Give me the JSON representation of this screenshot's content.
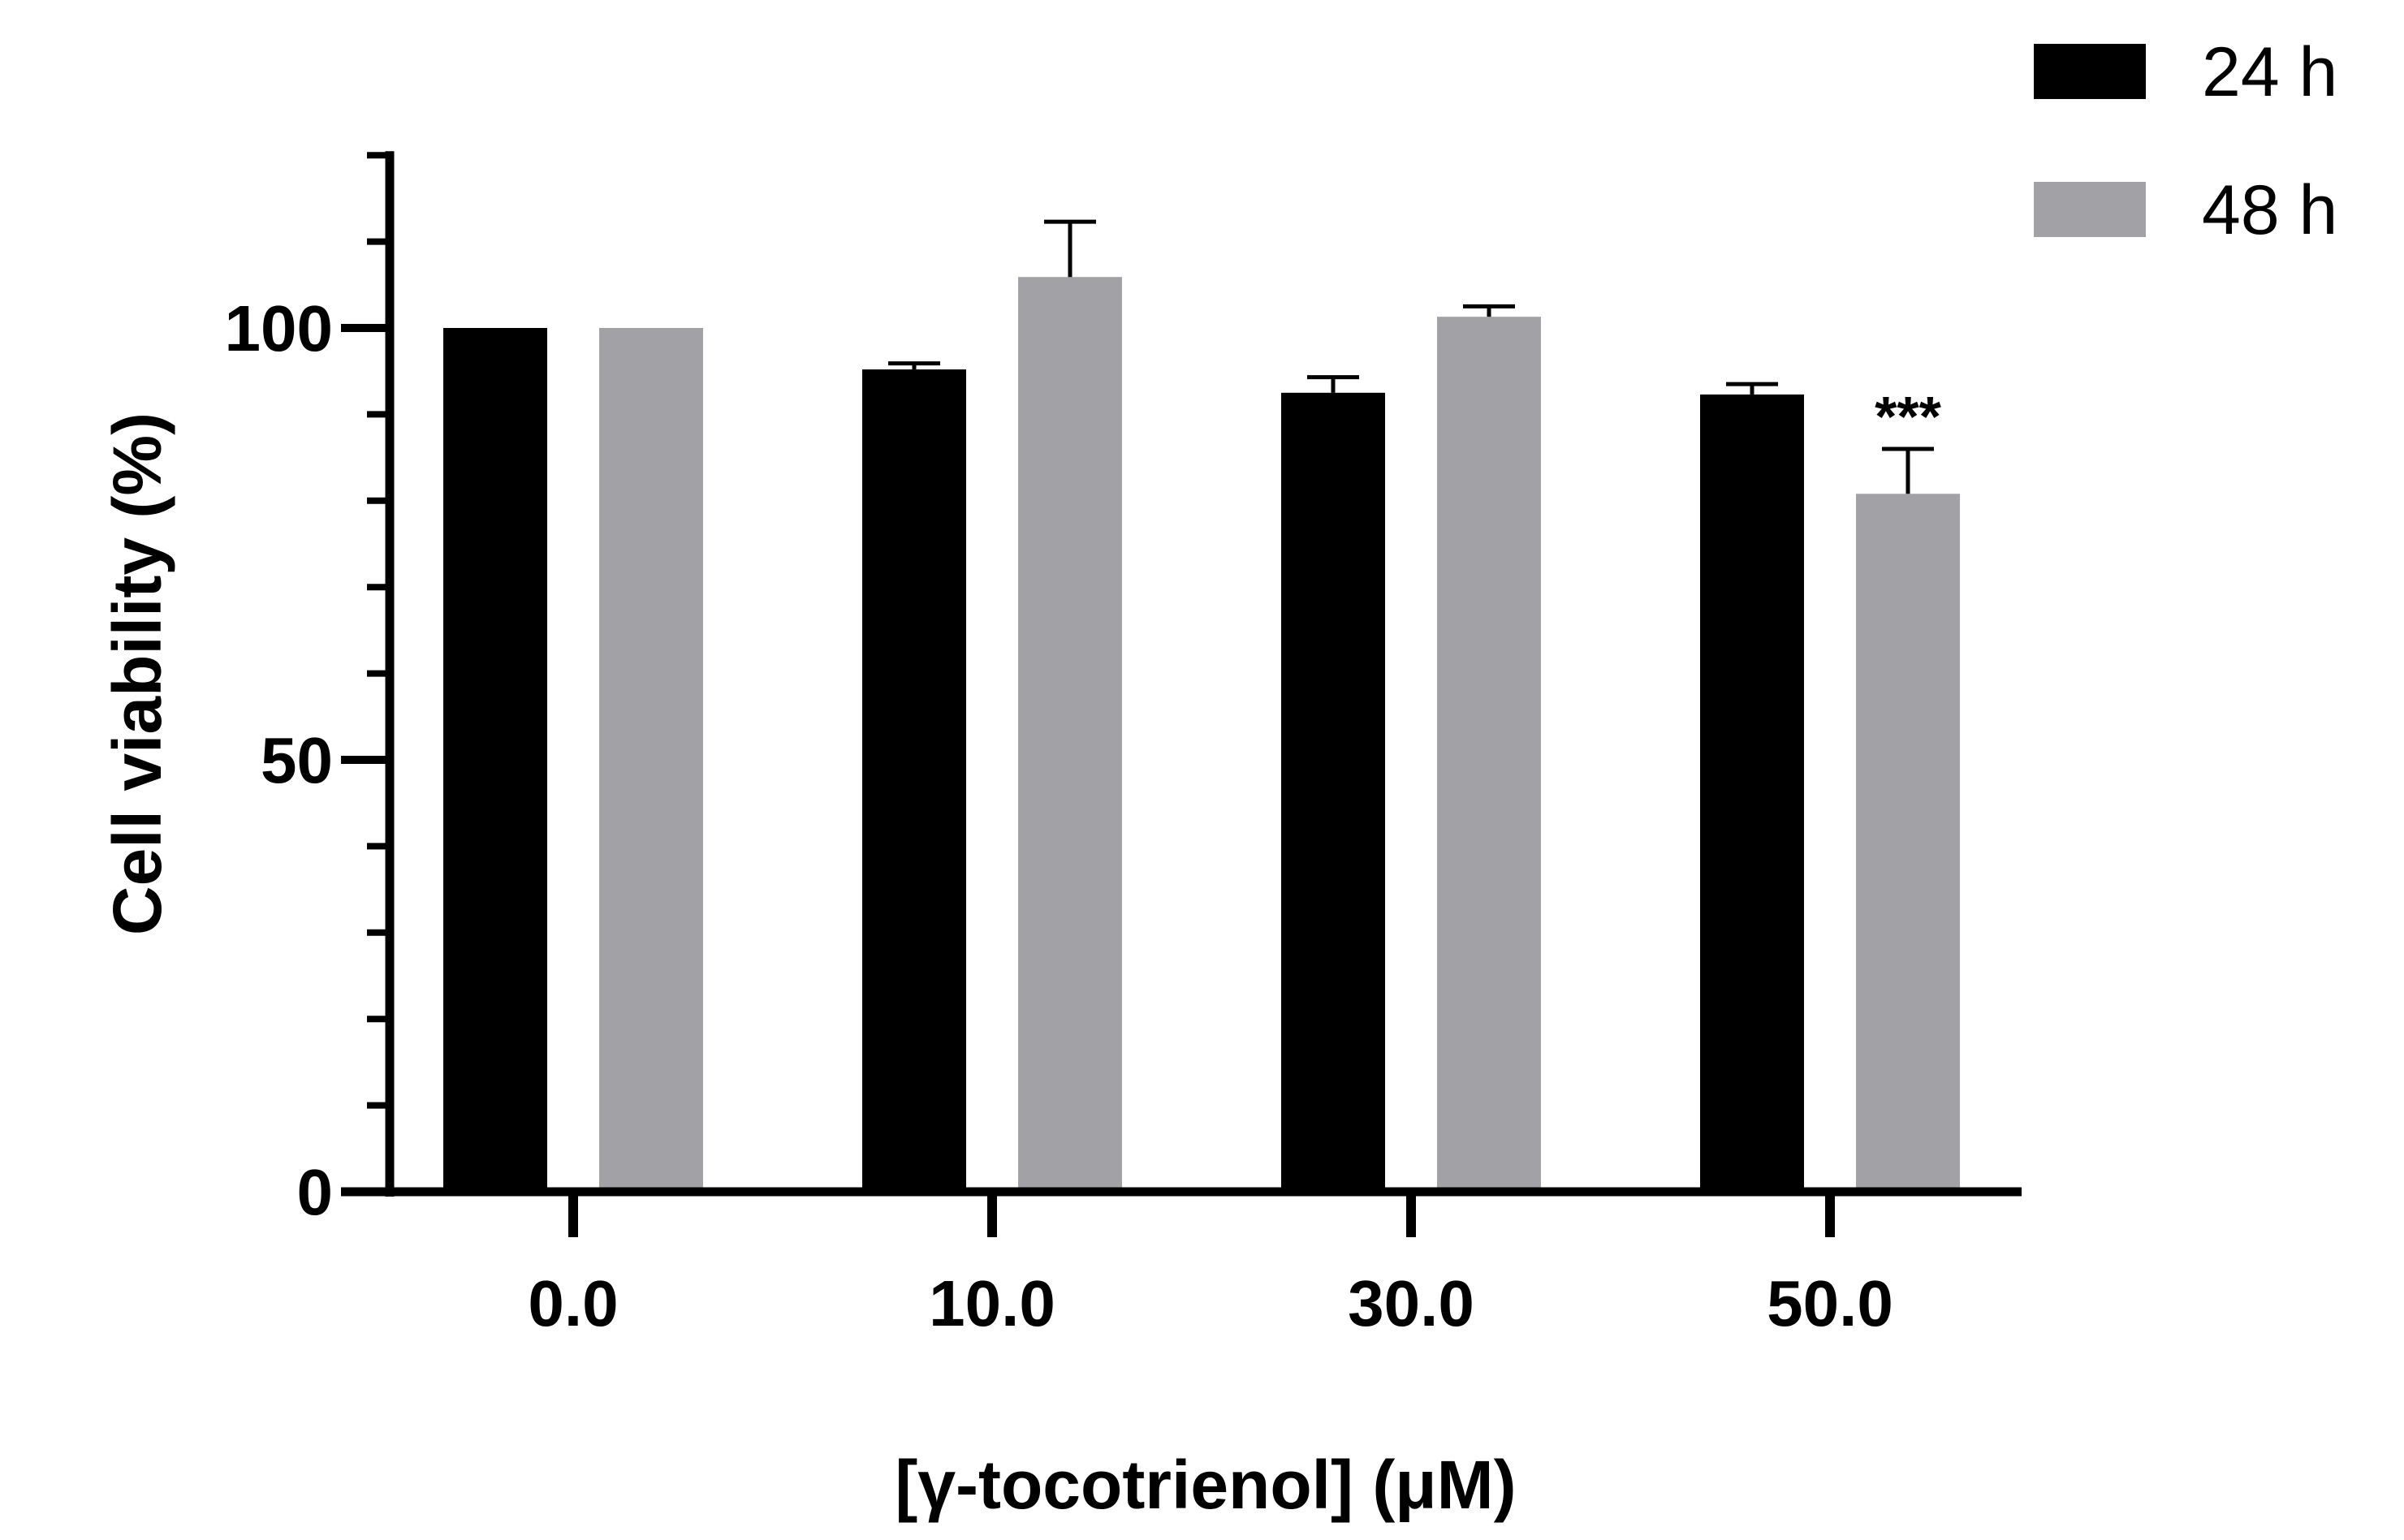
{
  "chart_data": {
    "type": "bar",
    "title": "",
    "xlabel": "[γ-tocotrienol] (μM)",
    "ylabel": "Cell viability (%)",
    "ylim": [
      0,
      120
    ],
    "yticks": [
      0,
      50,
      100
    ],
    "minor_tick_step": 10,
    "grid": false,
    "legend_position": "top-right",
    "categories": [
      "0.0",
      "10.0",
      "30.0",
      "50.0"
    ],
    "series": [
      {
        "name": "24 h",
        "color": "#000000",
        "values": [
          100,
          95.2,
          92.5,
          92.3
        ],
        "errors": [
          0,
          0.7,
          1.8,
          1.2
        ]
      },
      {
        "name": "48 h",
        "color": "#a2a2a6",
        "values": [
          100,
          105.9,
          101.3,
          80.8
        ],
        "errors": [
          0,
          6.4,
          1.2,
          5.2
        ]
      }
    ],
    "annotations": [
      {
        "category": "50.0",
        "series": "48 h",
        "text": "***"
      }
    ]
  }
}
